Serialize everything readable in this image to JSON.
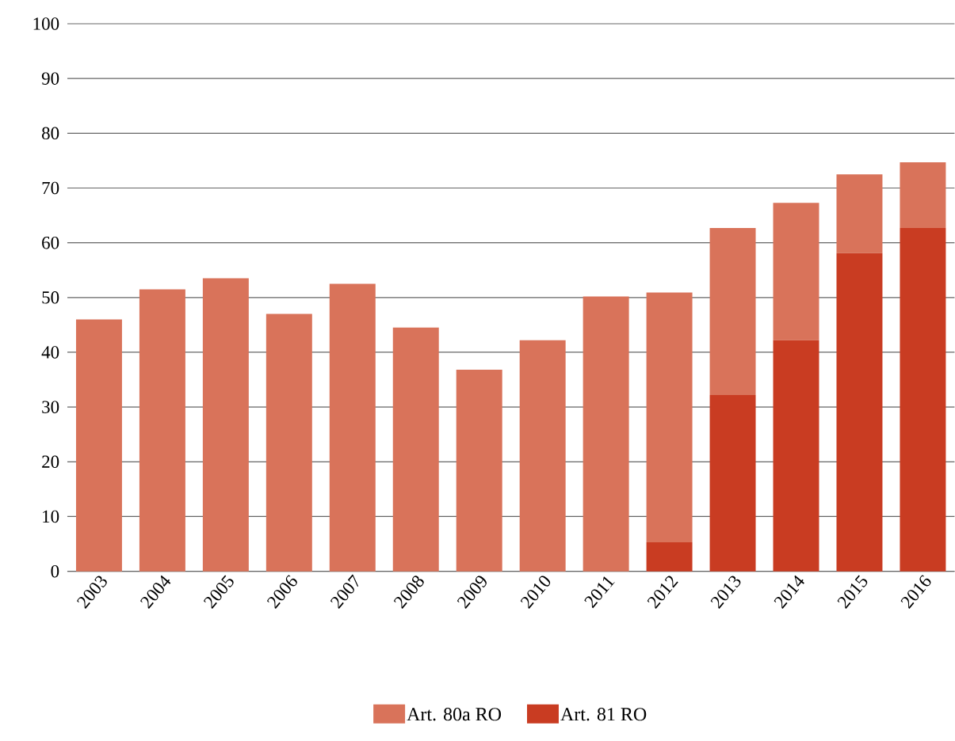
{
  "chart_data": {
    "type": "bar",
    "stacked": true,
    "categories": [
      "2003",
      "2004",
      "2005",
      "2006",
      "2007",
      "2008",
      "2009",
      "2010",
      "2011",
      "2012",
      "2013",
      "2014",
      "2015",
      "2016"
    ],
    "series": [
      {
        "name": "Art. 81   RO",
        "color": "#c93c22",
        "values": [
          null,
          null,
          null,
          null,
          null,
          null,
          null,
          null,
          null,
          5.3,
          32.2,
          42.2,
          58.1,
          62.7
        ]
      },
      {
        "name": "Art. 80a RO",
        "color": "#d9735a",
        "values": [
          46,
          51.5,
          53.5,
          47,
          52.5,
          44.5,
          36.8,
          42.2,
          50.2,
          45.6,
          30.5,
          25.1,
          14.4,
          12
        ]
      }
    ],
    "ylim": [
      0,
      100
    ],
    "yticks": [
      0,
      10,
      20,
      30,
      40,
      50,
      60,
      70,
      80,
      90,
      100
    ],
    "grid": "y",
    "legend": "bottom"
  }
}
